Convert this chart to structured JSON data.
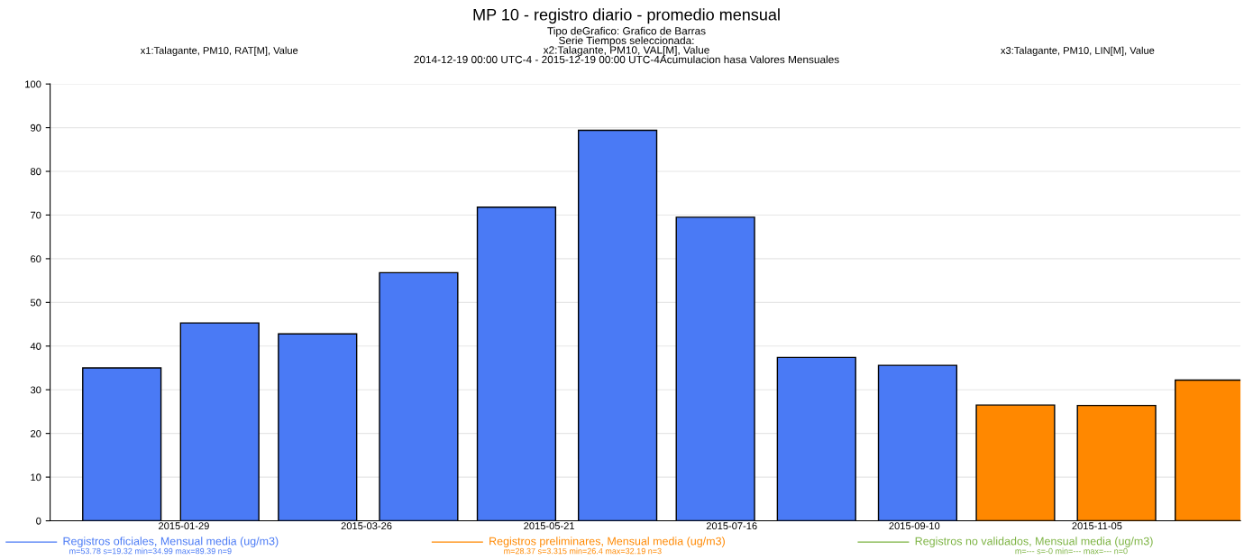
{
  "chart_data": {
    "type": "bar",
    "title": "MP 10 - registro diario - promedio mensual",
    "subtitle": "Tipo deGrafico: Grafico de Barras\nSerie Tiempos seleccionada:\nx2:Talagante, PM10, VAL[M], Value\n2014-12-19 00:00 UTC-4 - 2015-12-19 00:00 UTC-4Acumulacion hasa Valores Mensuales",
    "annotations": [
      "x1:Talagante, PM10, RAT[M], Value",
      "x3:Talagante, PM10, LIN[M], Value",
      "m=53.78 s=19.32 min=34.99 max=89.39 n=9",
      "m=28.37 s=3.315 min=26.4 max=32.19 n=3",
      "m=--- s=-0 min=--- max=--- n=0"
    ],
    "series": [
      {
        "name": "Registros oficiales, Mensual media (ug/m3)",
        "color": "#4a7af5",
        "x": [
          "2015-01-10",
          "2015-02-09",
          "2015-03-11",
          "2015-04-11",
          "2015-05-11",
          "2015-06-11",
          "2015-07-11",
          "2015-08-11",
          "2015-09-11"
        ],
        "values": [
          35.0,
          45.3,
          42.8,
          56.8,
          71.8,
          89.4,
          69.5,
          37.4,
          35.6
        ]
      },
      {
        "name": "Registros preliminares, Mensual media (ug/m3)",
        "color": "#ff8800",
        "x": [
          "2015-10-11",
          "2015-11-11",
          "2015-12-11"
        ],
        "values": [
          26.5,
          26.4,
          32.2
        ]
      },
      {
        "name": "Registros no validados, Mensual media (ug/m3)",
        "color": "#7cb342"
      }
    ],
    "xlim": [
      "2014-12-19",
      "2015-12-19"
    ],
    "xticks": [
      "2015-01-29",
      "2015-03-26",
      "2015-05-21",
      "2015-07-16",
      "2015-09-10",
      "2015-11-05"
    ],
    "ylim": [
      0,
      100
    ],
    "yticks": [
      0,
      10,
      20,
      30,
      40,
      50,
      60,
      70,
      80,
      90,
      100
    ],
    "grid": "y",
    "legend": "bottom"
  }
}
